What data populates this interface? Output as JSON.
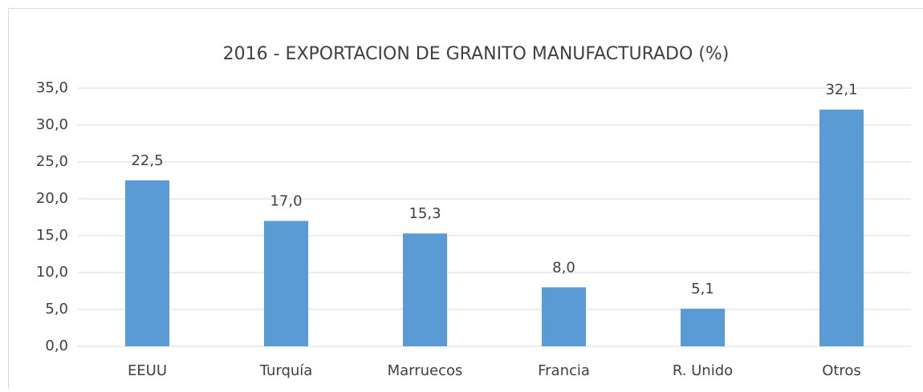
{
  "chart_data": {
    "type": "bar",
    "title": "2016 - EXPORTACION DE GRANITO MANUFACTURADO (%)",
    "categories": [
      "EEUU",
      "Turquía",
      "Marruecos",
      "Francia",
      "R. Unido",
      "Otros"
    ],
    "values": [
      22.5,
      17.0,
      15.3,
      8.0,
      5.1,
      32.1
    ],
    "value_labels": [
      "22,5",
      "17,0",
      "15,3",
      "8,0",
      "5,1",
      "32,1"
    ],
    "color": "#5b9bd5",
    "ylim": [
      0,
      35
    ],
    "yticks": [
      {
        "value": 0,
        "label": "0,0"
      },
      {
        "value": 5,
        "label": "5,0"
      },
      {
        "value": 10,
        "label": "10,0"
      },
      {
        "value": 15,
        "label": "15,0"
      },
      {
        "value": 20,
        "label": "20,0"
      },
      {
        "value": 25,
        "label": "25,0"
      },
      {
        "value": 30,
        "label": "30,0"
      },
      {
        "value": 35,
        "label": "35,0"
      }
    ],
    "grid": true
  }
}
